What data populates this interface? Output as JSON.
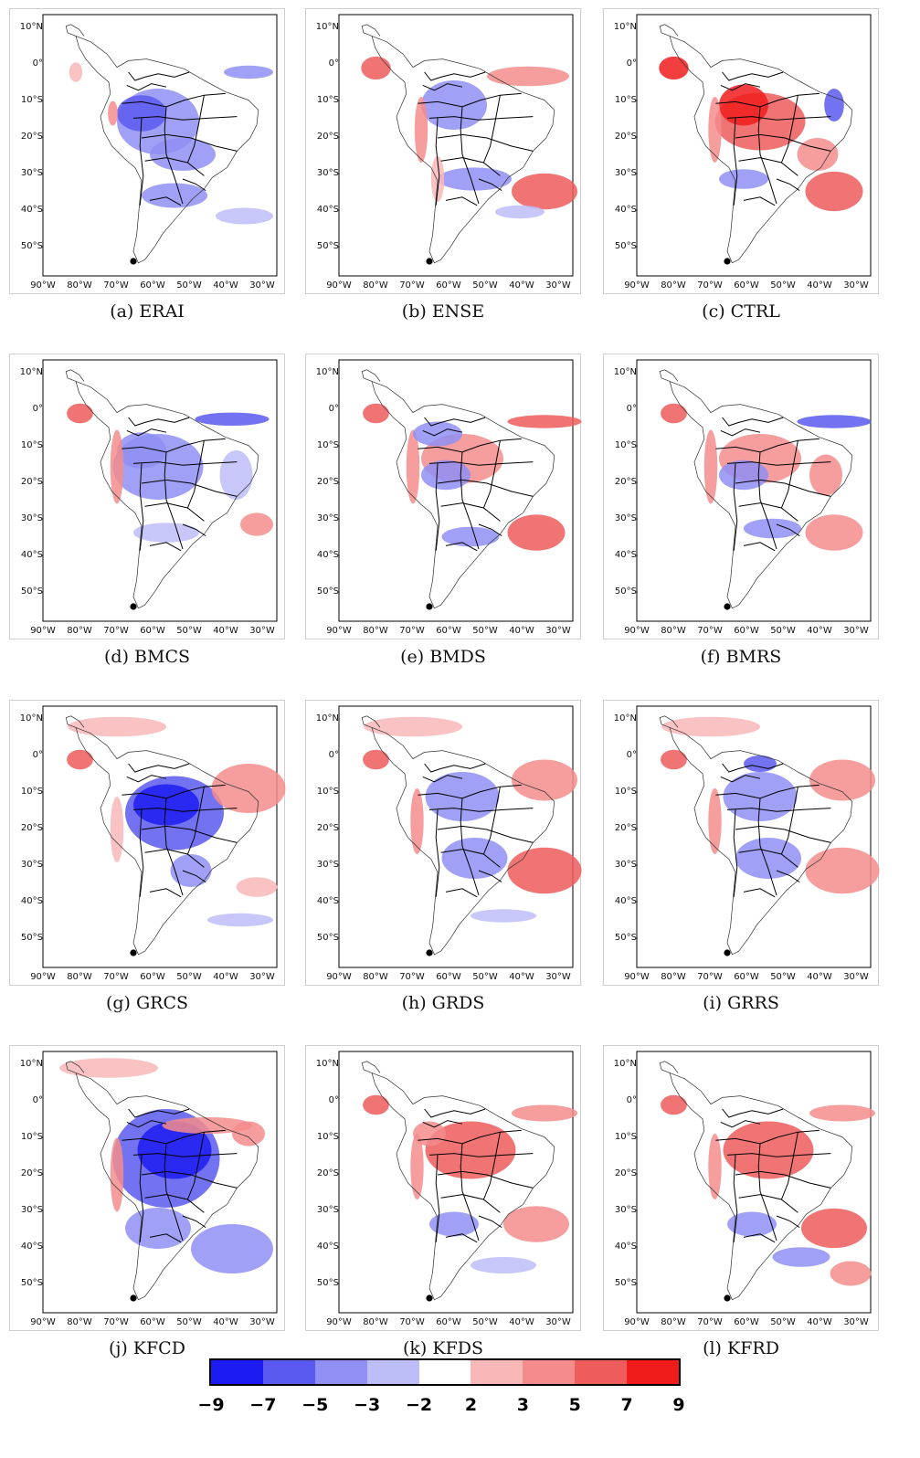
{
  "panels": [
    {
      "label": "(a) ERAI"
    },
    {
      "label": "(b) ENSE"
    },
    {
      "label": "(c) CTRL"
    },
    {
      "label": "(d) BMCS"
    },
    {
      "label": "(e) BMDS"
    },
    {
      "label": "(f) BMRS"
    },
    {
      "label": "(g) GRCS"
    },
    {
      "label": "(h) GRDS"
    },
    {
      "label": "(i) GRRS"
    },
    {
      "label": "(j) KFCD"
    },
    {
      "label": "(k) KFDS"
    },
    {
      "label": "(l) KFRD"
    }
  ],
  "axes": {
    "lat_ticks": [
      "10°N",
      "0°",
      "10°S",
      "20°S",
      "30°S",
      "40°S",
      "50°S"
    ],
    "lon_ticks": [
      "90°W",
      "80°W",
      "70°W",
      "60°W",
      "50°W",
      "40°W",
      "30°W"
    ]
  },
  "colorbar": {
    "levels": [
      "−9",
      "−7",
      "−5",
      "−3",
      "−2",
      "2",
      "3",
      "5",
      "7",
      "9"
    ],
    "colors": [
      "#1c1cf2",
      "#5a5af0",
      "#8f8ff4",
      "#bdbdf8",
      "#ffffff",
      "#f8b8b8",
      "#f48c8c",
      "#ef5c5c",
      "#f01c1c"
    ]
  }
}
